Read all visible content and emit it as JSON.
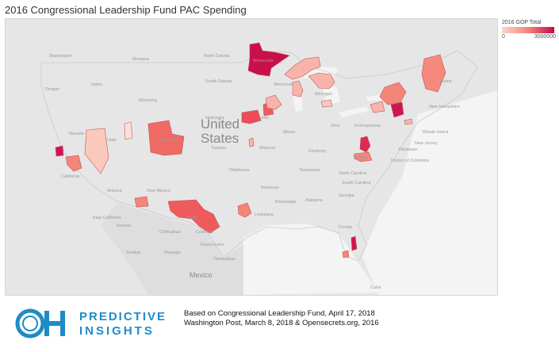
{
  "title": "2016 Congressional Leadership Fund PAC Spending",
  "legend": {
    "title": "2016 GOP Total",
    "min_label": "0",
    "max_label": "3000000",
    "min": 0,
    "max": 3000000
  },
  "map": {
    "country_label_1": "United",
    "country_label_2": "States",
    "mexico_label": "Mexico",
    "place_labels": [
      "Washington",
      "Montana",
      "North Dakota",
      "Minnesota",
      "Oregon",
      "Idaho",
      "South Dakota",
      "Wisconsin",
      "Michigan",
      "Wyoming",
      "Iowa",
      "Nebraska",
      "Illinois",
      "Ohio",
      "Nevada",
      "Utah",
      "Colorado",
      "Kansas",
      "Missouri",
      "Kentucky",
      "California",
      "Oklahoma",
      "Tennessee",
      "Arizona",
      "New Mexico",
      "Arkansas",
      "Mississippi",
      "Alabama",
      "Georgia",
      "Texas",
      "Louisiana",
      "Florida",
      "Pennsylvania",
      "Virginia",
      "North Carolina",
      "South Carolina",
      "Maine",
      "New Hampshire",
      "Rhode Island",
      "New Jersey",
      "Delaware",
      "District of Columbia",
      "Chihuahua",
      "Sonora",
      "Coahuila",
      "Durango",
      "Sinaloa",
      "Nuevo Leon",
      "Tamaulipas",
      "Baja California",
      "Cuba"
    ]
  },
  "colors": {
    "low": "#fbd6cb",
    "mid": "#f3857b",
    "high": "#c20a45",
    "land": "#e3e3e3",
    "water": "#ffffff"
  },
  "districts_spending": [
    {
      "region": "Minnesota",
      "value": 2800000
    },
    {
      "region": "Michigan Upper Peninsula",
      "value": 600000
    },
    {
      "region": "Michigan Lower",
      "value": 500000
    },
    {
      "region": "Wisconsin",
      "value": 500000
    },
    {
      "region": "Iowa",
      "value": 1400000
    },
    {
      "region": "Colorado",
      "value": 1500000
    },
    {
      "region": "Nevada",
      "value": 600000
    },
    {
      "region": "California North",
      "value": 2700000
    },
    {
      "region": "California Central",
      "value": 800000
    },
    {
      "region": "Utah",
      "value": 200000
    },
    {
      "region": "Texas",
      "value": 1400000
    },
    {
      "region": "New Mexico",
      "value": 800000
    },
    {
      "region": "Louisiana",
      "value": 600000
    },
    {
      "region": "Kansas",
      "value": 1000000
    },
    {
      "region": "Virginia",
      "value": 1800000
    },
    {
      "region": "North Carolina",
      "value": 900000
    },
    {
      "region": "Florida South",
      "value": 2700000
    },
    {
      "region": "Florida Keys",
      "value": 1200000
    },
    {
      "region": "New York Upstate",
      "value": 1100000
    },
    {
      "region": "New York Hudson",
      "value": 2300000
    },
    {
      "region": "Maine",
      "value": 1000000
    },
    {
      "region": "New Jersey",
      "value": 1200000
    },
    {
      "region": "Illinois",
      "value": 900000
    },
    {
      "region": "Pennsylvania",
      "value": 600000
    },
    {
      "region": "Ohio",
      "value": 700000
    }
  ],
  "logo": {
    "line1": "PREDICTIVE",
    "line2": "INSIGHTS"
  },
  "source": {
    "line1": "Based on Congressional Leadership Fund, April 17, 2018",
    "line2": "Washington Post, March 8, 2018 & Opensecrets.org, 2016"
  }
}
